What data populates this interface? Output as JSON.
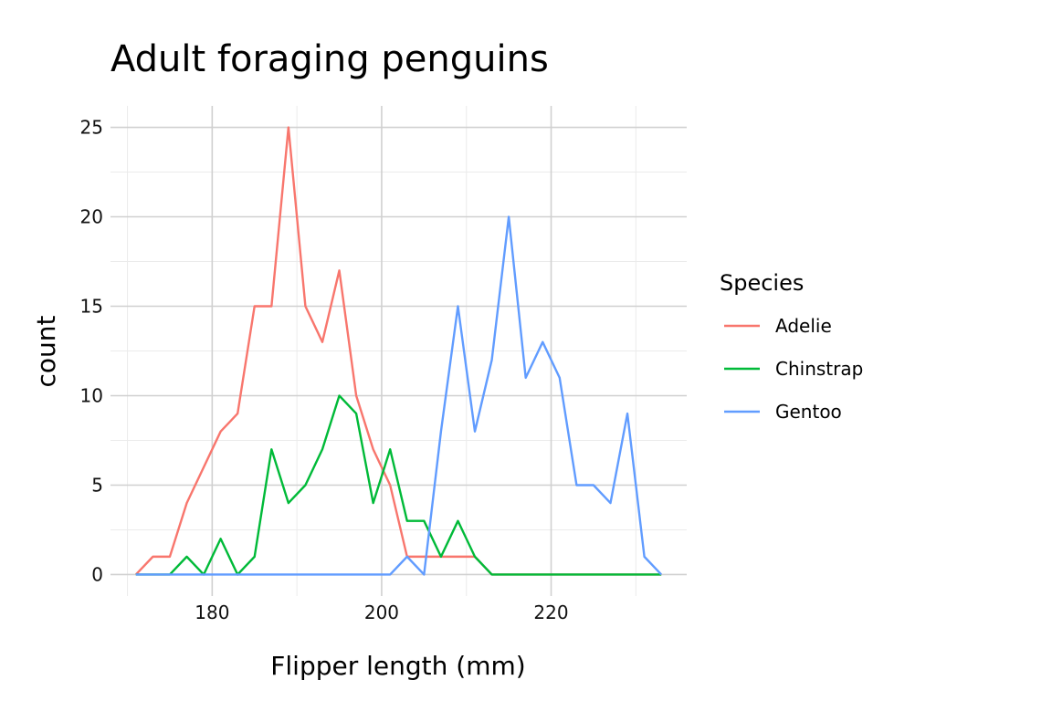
{
  "chart_data": {
    "type": "line",
    "title": "Adult foraging penguins",
    "xlabel": "Flipper length (mm)",
    "ylabel": "count",
    "xlim": [
      168,
      236
    ],
    "ylim": [
      -1.2,
      26.2
    ],
    "x_ticks": [
      180,
      200,
      220
    ],
    "y_ticks": [
      0,
      5,
      10,
      15,
      20,
      25
    ],
    "grid": true,
    "legend": {
      "title": "Species",
      "placement": "right"
    },
    "series": [
      {
        "name": "Adelie",
        "color": "#F8766D",
        "points": [
          [
            171,
            0
          ],
          [
            173,
            1
          ],
          [
            175,
            1
          ],
          [
            177,
            4
          ],
          [
            179,
            6
          ],
          [
            181,
            8
          ],
          [
            183,
            9
          ],
          [
            185,
            15
          ],
          [
            187,
            15
          ],
          [
            189,
            25
          ],
          [
            191,
            15
          ],
          [
            193,
            13
          ],
          [
            195,
            17
          ],
          [
            197,
            10
          ],
          [
            199,
            7
          ],
          [
            201,
            5
          ],
          [
            203,
            1
          ],
          [
            205,
            1
          ],
          [
            207,
            1
          ],
          [
            209,
            1
          ],
          [
            211,
            1
          ],
          [
            213,
            0
          ],
          [
            215,
            0
          ],
          [
            217,
            0
          ],
          [
            219,
            0
          ],
          [
            221,
            0
          ],
          [
            223,
            0
          ],
          [
            225,
            0
          ],
          [
            227,
            0
          ],
          [
            229,
            0
          ],
          [
            231,
            0
          ],
          [
            233,
            0
          ]
        ]
      },
      {
        "name": "Chinstrap",
        "color": "#00BA38",
        "points": [
          [
            171,
            0
          ],
          [
            173,
            0
          ],
          [
            175,
            0
          ],
          [
            177,
            1
          ],
          [
            179,
            0
          ],
          [
            181,
            2
          ],
          [
            183,
            0
          ],
          [
            185,
            1
          ],
          [
            187,
            7
          ],
          [
            189,
            4
          ],
          [
            191,
            5
          ],
          [
            193,
            7
          ],
          [
            195,
            10
          ],
          [
            197,
            9
          ],
          [
            199,
            4
          ],
          [
            201,
            7
          ],
          [
            203,
            3
          ],
          [
            205,
            3
          ],
          [
            207,
            1
          ],
          [
            209,
            3
          ],
          [
            211,
            1
          ],
          [
            213,
            0
          ],
          [
            215,
            0
          ],
          [
            217,
            0
          ],
          [
            219,
            0
          ],
          [
            221,
            0
          ],
          [
            223,
            0
          ],
          [
            225,
            0
          ],
          [
            227,
            0
          ],
          [
            229,
            0
          ],
          [
            231,
            0
          ],
          [
            233,
            0
          ]
        ]
      },
      {
        "name": "Gentoo",
        "color": "#619CFF",
        "points": [
          [
            171,
            0
          ],
          [
            173,
            0
          ],
          [
            175,
            0
          ],
          [
            177,
            0
          ],
          [
            179,
            0
          ],
          [
            181,
            0
          ],
          [
            183,
            0
          ],
          [
            185,
            0
          ],
          [
            187,
            0
          ],
          [
            189,
            0
          ],
          [
            191,
            0
          ],
          [
            193,
            0
          ],
          [
            195,
            0
          ],
          [
            197,
            0
          ],
          [
            199,
            0
          ],
          [
            201,
            0
          ],
          [
            203,
            1
          ],
          [
            205,
            0
          ],
          [
            207,
            8
          ],
          [
            209,
            15
          ],
          [
            211,
            8
          ],
          [
            213,
            12
          ],
          [
            215,
            20
          ],
          [
            217,
            11
          ],
          [
            219,
            13
          ],
          [
            221,
            11
          ],
          [
            223,
            5
          ],
          [
            225,
            5
          ],
          [
            227,
            4
          ],
          [
            229,
            9
          ],
          [
            231,
            1
          ],
          [
            233,
            0
          ]
        ]
      }
    ]
  }
}
